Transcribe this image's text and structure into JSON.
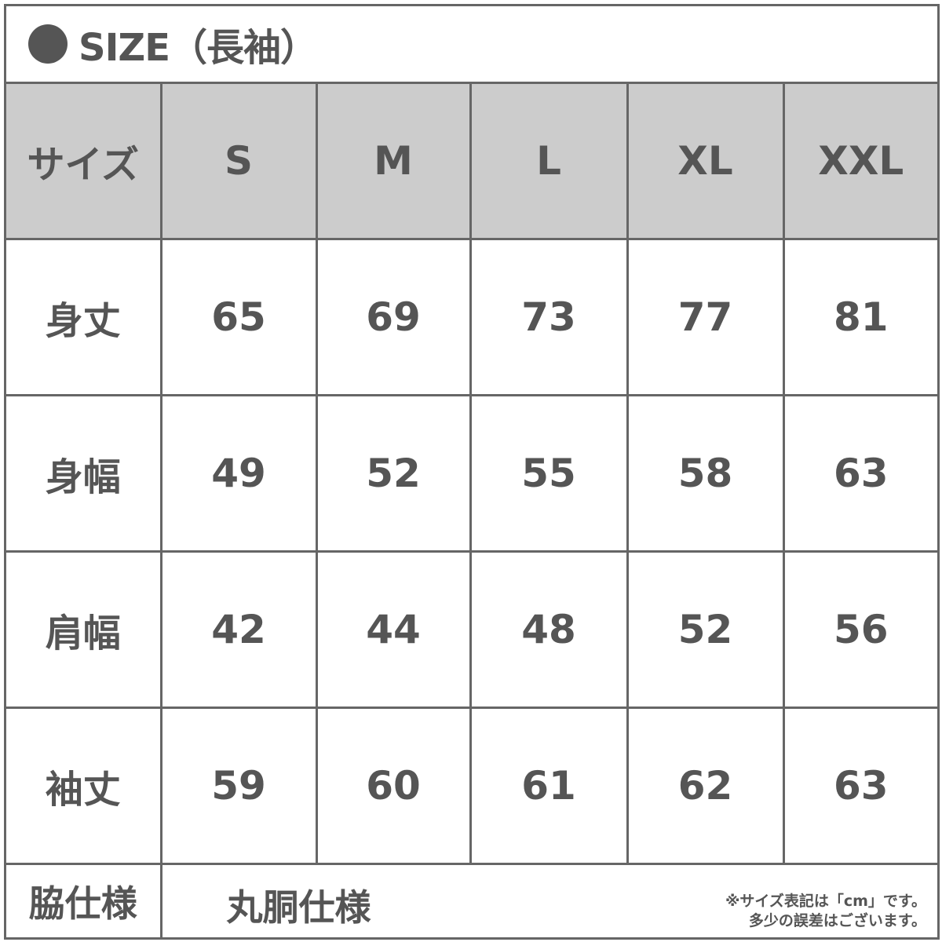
{
  "title": "SIZE（長袖）",
  "title_icon": "filled-circle-icon",
  "colors": {
    "text": "#555555",
    "header_bg": "#cccccc",
    "border": "#666666"
  },
  "header": {
    "label": "サイズ",
    "sizes": [
      "S",
      "M",
      "L",
      "XL",
      "XXL"
    ]
  },
  "rows": [
    {
      "label": "身丈",
      "values": [
        "65",
        "69",
        "73",
        "77",
        "81"
      ]
    },
    {
      "label": "身幅",
      "values": [
        "49",
        "52",
        "55",
        "58",
        "63"
      ]
    },
    {
      "label": "肩幅",
      "values": [
        "42",
        "44",
        "48",
        "52",
        "56"
      ]
    },
    {
      "label": "袖丈",
      "values": [
        "59",
        "60",
        "61",
        "62",
        "63"
      ]
    }
  ],
  "footer": {
    "label": "脇仕様",
    "value": "丸胴仕様",
    "note_line1": "※サイズ表記は「cm」です。",
    "note_line2": "多少の誤差はございます。"
  }
}
